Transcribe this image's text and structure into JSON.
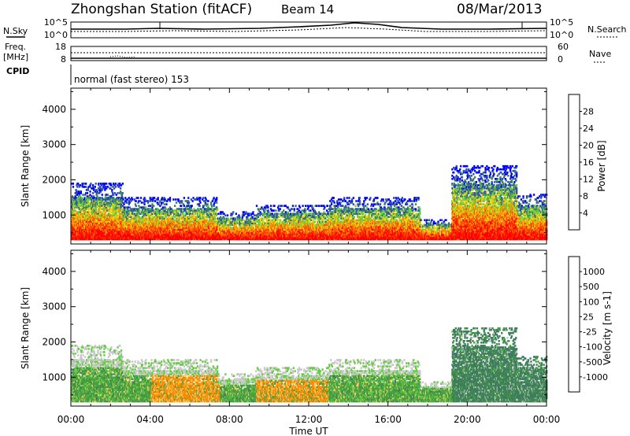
{
  "header": {
    "station": "Zhongshan Station (fitACF)",
    "beam": "Beam 14",
    "date": "08/Mar/2013"
  },
  "summary": {
    "nsky_label": "N.Sky",
    "nsearch_label": "N.Search",
    "noise_ticks": [
      "10^5",
      "10^0"
    ],
    "freq_label": "Freq.",
    "freq_unit": "[MHz]",
    "freq_ticks": [
      "18",
      "8"
    ],
    "nave_label": "Nave",
    "nave_ticks": [
      "60",
      "0"
    ],
    "cpid_label": "CPID",
    "cpid_text": "normal (fast stereo) 153"
  },
  "chart_data": [
    {
      "type": "heatmap",
      "name": "power",
      "ylabel": "Slant Range [km]",
      "xlabel": "Time UT",
      "xlim": [
        0,
        24
      ],
      "ylim": [
        180,
        4600
      ],
      "x_ticks": [
        "00:00",
        "04:00",
        "08:00",
        "12:00",
        "16:00",
        "20:00",
        "00:00"
      ],
      "y_ticks": [
        1000,
        2000,
        3000,
        4000
      ],
      "colorbar_label": "Power [dB]",
      "colorbar_ticks": [
        "4",
        "8",
        "12",
        "16",
        "20",
        "24",
        "28"
      ],
      "colorbar_colors": [
        "#0000ff",
        "#2d4fb3",
        "#3e7d5e",
        "#66cc44",
        "#e8d810",
        "#ff8c00",
        "#ff4400",
        "#ff0000"
      ],
      "bands": [
        {
          "t0": 0.0,
          "t1": 2.6,
          "r0": 300,
          "r1": 1900
        },
        {
          "t0": 2.6,
          "t1": 7.4,
          "r0": 300,
          "r1": 1500
        },
        {
          "t0": 7.4,
          "t1": 9.3,
          "r0": 300,
          "r1": 1100
        },
        {
          "t0": 9.3,
          "t1": 13.0,
          "r0": 300,
          "r1": 1300
        },
        {
          "t0": 13.0,
          "t1": 17.6,
          "r0": 300,
          "r1": 1500
        },
        {
          "t0": 17.6,
          "t1": 19.2,
          "r0": 300,
          "r1": 900
        },
        {
          "t0": 19.2,
          "t1": 22.5,
          "r0": 300,
          "r1": 2400
        },
        {
          "t0": 22.5,
          "t1": 24.0,
          "r0": 300,
          "r1": 1600
        }
      ]
    },
    {
      "type": "heatmap",
      "name": "velocity",
      "ylabel": "Slant Range [km]",
      "xlabel": "Time UT",
      "xlim": [
        0,
        24
      ],
      "ylim": [
        180,
        4600
      ],
      "x_ticks": [
        "00:00",
        "04:00",
        "08:00",
        "12:00",
        "16:00",
        "20:00",
        "00:00"
      ],
      "y_ticks": [
        1000,
        2000,
        3000,
        4000
      ],
      "colorbar_label": "Velocity [m s-1]",
      "colorbar_ticks": [
        "1000",
        "500",
        "100",
        "25",
        "-25",
        "-100",
        "-500",
        "-1000"
      ],
      "colorbar_colors": [
        "#2d4fb3",
        "#3e7d5e",
        "#48a040",
        "#66cc44",
        "#c8c8c8",
        "#ffcc66",
        "#ff8c00",
        "#ff4400",
        "#ff0000"
      ],
      "bands": [
        {
          "t0": 0.0,
          "t1": 2.6,
          "r0": 300,
          "r1": 1900
        },
        {
          "t0": 2.6,
          "t1": 7.4,
          "r0": 300,
          "r1": 1500
        },
        {
          "t0": 7.4,
          "t1": 9.3,
          "r0": 300,
          "r1": 1100
        },
        {
          "t0": 9.3,
          "t1": 13.0,
          "r0": 300,
          "r1": 1300
        },
        {
          "t0": 13.0,
          "t1": 17.6,
          "r0": 300,
          "r1": 1500
        },
        {
          "t0": 17.6,
          "t1": 19.2,
          "r0": 300,
          "r1": 900
        },
        {
          "t0": 19.2,
          "t1": 22.5,
          "r0": 300,
          "r1": 2400
        },
        {
          "t0": 22.5,
          "t1": 24.0,
          "r0": 300,
          "r1": 1600
        }
      ]
    }
  ]
}
